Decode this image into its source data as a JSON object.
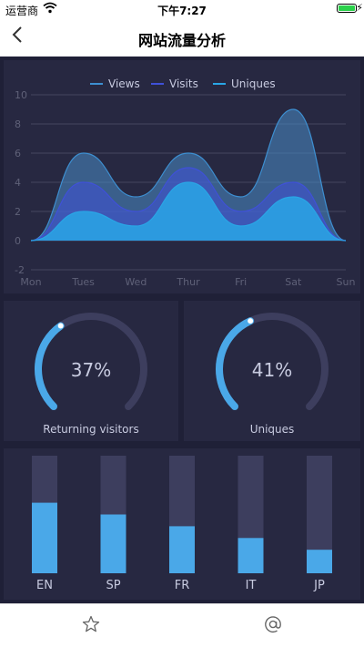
{
  "status_bar": {
    "carrier": "运营商",
    "time": "下午7:27"
  },
  "nav": {
    "title": "网站流量分析",
    "back_icon": "chevron-left-icon"
  },
  "chart_data": [
    {
      "type": "area",
      "categories": [
        "Mon",
        "Tues",
        "Wed",
        "Thur",
        "Fri",
        "Sat",
        "Sun"
      ],
      "ylim": [
        -2,
        10
      ],
      "yticks": [
        "-2",
        "0",
        "2",
        "4",
        "6",
        "8",
        "10"
      ],
      "grid": true,
      "legend_position": "top",
      "series": [
        {
          "name": "Views",
          "values": [
            0,
            6,
            3,
            6,
            3,
            9,
            0
          ],
          "color": "#3d8fd1"
        },
        {
          "name": "Visits",
          "values": [
            0,
            4,
            2,
            5,
            2,
            4,
            0
          ],
          "color": "#3f51d8"
        },
        {
          "name": "Uniques",
          "values": [
            0,
            2,
            1,
            4,
            1,
            3,
            0
          ],
          "color": "#29a6e6"
        }
      ]
    },
    {
      "type": "gauge",
      "value": 37,
      "value_label": "37%",
      "label": "Returning visitors"
    },
    {
      "type": "gauge",
      "value": 41,
      "value_label": "41%",
      "label": "Uniques"
    },
    {
      "type": "bar",
      "categories": [
        "EN",
        "SP",
        "FR",
        "IT",
        "JP"
      ],
      "values": [
        60,
        50,
        40,
        30,
        20
      ],
      "ylim": [
        0,
        100
      ]
    }
  ],
  "colors": {
    "background": "#1f2037",
    "panel": "#272841",
    "accent": "#4aa8e8",
    "track": "#3d3e5e",
    "grid": "#44465f",
    "axis_text": "#5f6178"
  },
  "tab_bar": {
    "items": [
      {
        "icon": "star-icon"
      },
      {
        "icon": "at-icon"
      }
    ]
  }
}
